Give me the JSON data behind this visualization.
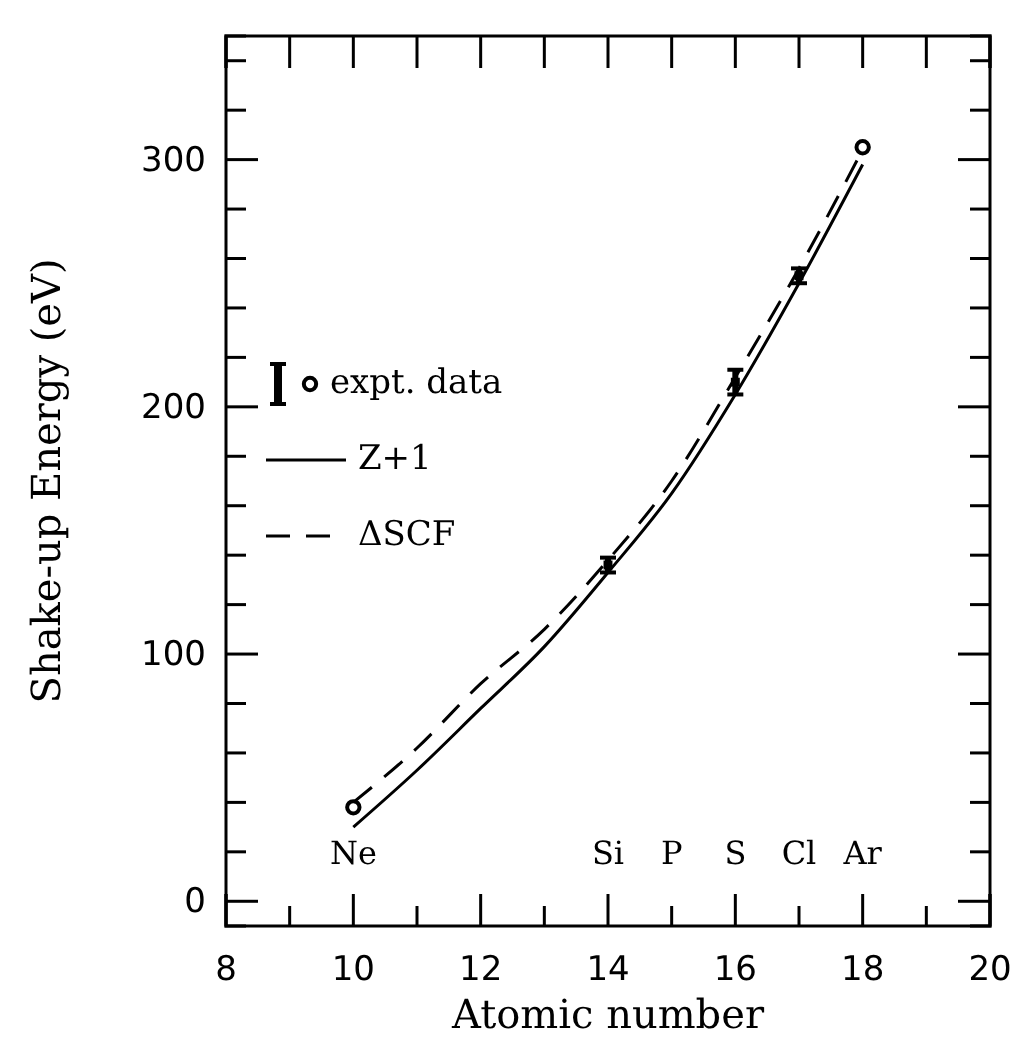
{
  "chart_data": {
    "type": "scatter",
    "xlabel": "Atomic number",
    "ylabel": "Shake-up Energy (eV)",
    "xlim": [
      8,
      20
    ],
    "ylim": [
      -10,
      350
    ],
    "xticks": [
      8,
      {
        "value": 9,
        "label": null
      },
      10,
      {
        "value": 11,
        "label": null
      },
      12,
      {
        "value": 13,
        "label": null
      },
      14,
      {
        "value": 15,
        "label": null
      },
      16,
      {
        "value": 17,
        "label": null
      },
      18,
      {
        "value": 19,
        "label": null
      },
      20
    ],
    "yticks": [
      0,
      {
        "value": 20,
        "label": null
      },
      {
        "value": 40,
        "label": null
      },
      {
        "value": 60,
        "label": null
      },
      {
        "value": 80,
        "label": null
      },
      100,
      {
        "value": 120,
        "label": null
      },
      {
        "value": 140,
        "label": null
      },
      {
        "value": 160,
        "label": null
      },
      {
        "value": 180,
        "label": null
      },
      200,
      {
        "value": 220,
        "label": null
      },
      {
        "value": 240,
        "label": null
      },
      {
        "value": 260,
        "label": null
      },
      {
        "value": 280,
        "label": null
      },
      300,
      {
        "value": 320,
        "label": null
      },
      {
        "value": 340,
        "label": null
      }
    ],
    "grid": false,
    "legend": "top left",
    "series": [
      {
        "name": "expt. data",
        "marker": "circle",
        "color": "#000000",
        "x": [
          10,
          18
        ],
        "values": [
          38,
          305
        ]
      },
      {
        "marker": "square",
        "color": "#000000",
        "x": [
          14,
          16,
          17
        ],
        "values": [
          136,
          210,
          253
        ],
        "errors": [
          3,
          5,
          3
        ]
      },
      {
        "name": "Z+1",
        "type": "line",
        "line_style": "solid",
        "marker": "none",
        "color": "#000000",
        "x": [
          10,
          11,
          12,
          13,
          14,
          15,
          16,
          17,
          18
        ],
        "values": [
          30,
          53,
          78,
          103,
          133,
          165,
          205,
          250,
          298
        ]
      },
      {
        "name": "ΔSCF",
        "type": "line",
        "line_style": "dashed",
        "marker": "none",
        "color": "#000000",
        "x": [
          10,
          11,
          12,
          13,
          14,
          15,
          16,
          17,
          18
        ],
        "values": [
          40,
          62,
          88,
          110,
          138,
          170,
          212,
          256,
          304
        ]
      }
    ],
    "annotations": [
      "Ne",
      "Si",
      "P",
      "S",
      "Cl",
      "Ar"
    ]
  }
}
